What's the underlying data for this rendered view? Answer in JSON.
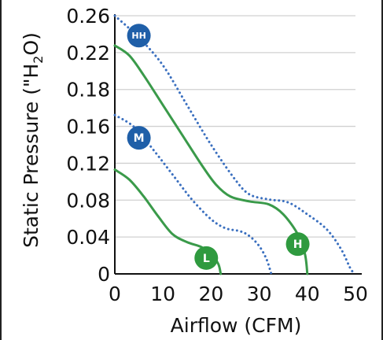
{
  "chart_data": {
    "type": "line",
    "xlabel": "Airflow (CFM)",
    "ylabel_parts": [
      "Static Pressure (\"H",
      "2",
      "O)"
    ],
    "xlim": [
      0,
      50
    ],
    "ylim": [
      0,
      0.26
    ],
    "x_ticks": [
      "0",
      "10",
      "20",
      "30",
      "40",
      "50"
    ],
    "y_ticks": [
      "0",
      "0.04",
      "0.08",
      "0.12",
      "0.16",
      "0.18",
      "0.22",
      "0.26"
    ],
    "grid": true,
    "series": [
      {
        "name": "HH",
        "style": "dotted",
        "color": "#3a6fbf",
        "points": [
          [
            0,
            0.26
          ],
          [
            5,
            0.238
          ],
          [
            10,
            0.21
          ],
          [
            15,
            0.17
          ],
          [
            20,
            0.13
          ],
          [
            25,
            0.095
          ],
          [
            28,
            0.08
          ],
          [
            32,
            0.075
          ],
          [
            36,
            0.072
          ],
          [
            40,
            0.06
          ],
          [
            44,
            0.045
          ],
          [
            47,
            0.025
          ],
          [
            49,
            0.005
          ],
          [
            50,
            0
          ]
        ]
      },
      {
        "name": "H",
        "style": "solid",
        "color": "#3a9a4a",
        "points": [
          [
            0,
            0.23
          ],
          [
            3,
            0.22
          ],
          [
            6,
            0.2
          ],
          [
            10,
            0.17
          ],
          [
            14,
            0.14
          ],
          [
            18,
            0.11
          ],
          [
            21,
            0.09
          ],
          [
            24,
            0.078
          ],
          [
            28,
            0.073
          ],
          [
            32,
            0.07
          ],
          [
            35,
            0.06
          ],
          [
            38,
            0.04
          ],
          [
            39.5,
            0.02
          ],
          [
            40,
            0
          ]
        ]
      },
      {
        "name": "M",
        "style": "dotted",
        "color": "#3a6fbf",
        "points": [
          [
            0,
            0.16
          ],
          [
            4,
            0.148
          ],
          [
            8,
            0.125
          ],
          [
            12,
            0.1
          ],
          [
            16,
            0.075
          ],
          [
            20,
            0.055
          ],
          [
            23,
            0.046
          ],
          [
            26,
            0.043
          ],
          [
            28,
            0.038
          ],
          [
            30,
            0.028
          ],
          [
            31.5,
            0.015
          ],
          [
            32.5,
            0
          ]
        ]
      },
      {
        "name": "L",
        "style": "solid",
        "color": "#3a9a4a",
        "points": [
          [
            0,
            0.105
          ],
          [
            3,
            0.095
          ],
          [
            6,
            0.078
          ],
          [
            9,
            0.058
          ],
          [
            12,
            0.04
          ],
          [
            15,
            0.032
          ],
          [
            18,
            0.027
          ],
          [
            20,
            0.02
          ],
          [
            21.5,
            0.01
          ],
          [
            22,
            0
          ]
        ]
      }
    ],
    "markers": [
      {
        "label": "HH",
        "x": 5,
        "y": 0.24,
        "color": "#1f5fa8"
      },
      {
        "label": "M",
        "x": 5,
        "y": 0.137,
        "color": "#1f5fa8"
      },
      {
        "label": "L",
        "x": 19,
        "y": 0.016,
        "color": "#2f9a3f"
      },
      {
        "label": "H",
        "x": 38,
        "y": 0.03,
        "color": "#2f9a3f"
      }
    ]
  }
}
